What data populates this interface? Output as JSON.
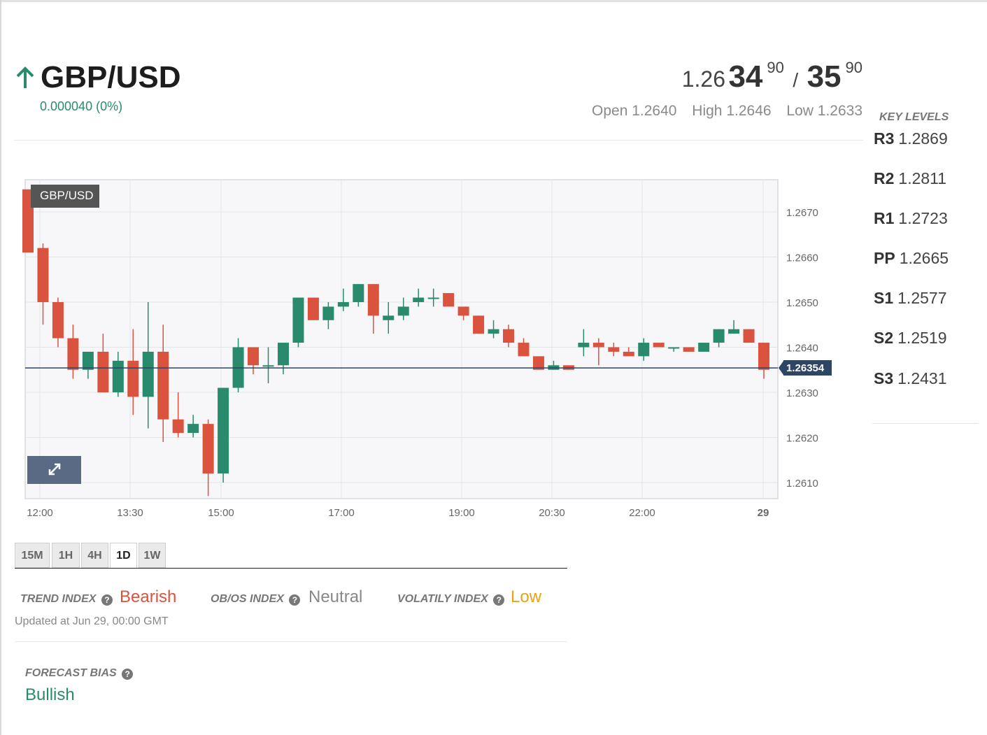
{
  "header": {
    "pair": "GBP/USD",
    "change": "0.000040 (0%)",
    "direction_icon": "arrow-up-icon",
    "up_color": "#2a8a6e"
  },
  "quote": {
    "bid_base": "1.26",
    "bid_big": "34",
    "bid_small": "90",
    "slash": "/",
    "ask_big": "35",
    "ask_small": "90",
    "open": "Open 1.2640",
    "high": "High 1.2646",
    "low": "Low 1.2633"
  },
  "key_levels": {
    "title": "KEY LEVELS",
    "rows": [
      {
        "name": "R3",
        "value": "1.2869"
      },
      {
        "name": "R2",
        "value": "1.2811"
      },
      {
        "name": "R1",
        "value": "1.2723"
      },
      {
        "name": "PP",
        "value": "1.2665"
      },
      {
        "name": "S1",
        "value": "1.2577"
      },
      {
        "name": "S2",
        "value": "1.2519"
      },
      {
        "name": "S3",
        "value": "1.2431"
      }
    ]
  },
  "chart": {
    "tag": "GBP/USD",
    "last_price": "1.26354",
    "expand_icon": "expand-icon"
  },
  "chart_data": {
    "type": "candlestick",
    "y_ticks": [
      "1.2670",
      "1.2660",
      "1.2650",
      "1.2640",
      "1.2630",
      "1.2620",
      "1.2610"
    ],
    "x_ticks": [
      "12:00",
      "13:30",
      "15:00",
      "17:00",
      "19:00",
      "20:30",
      "22:00",
      "29"
    ],
    "ylim": [
      1.2605,
      1.2677
    ],
    "last_price": 1.26354,
    "bull_color": "#2a8a6e",
    "bear_color": "#d9533f",
    "grid": true,
    "candles": [
      [
        1.2675,
        1.2675,
        1.2661,
        1.2661
      ],
      [
        1.2662,
        1.2663,
        1.2645,
        1.265
      ],
      [
        1.265,
        1.2651,
        1.264,
        1.2642
      ],
      [
        1.2642,
        1.2645,
        1.2633,
        1.2635
      ],
      [
        1.2635,
        1.2639,
        1.2633,
        1.2639
      ],
      [
        1.2639,
        1.2643,
        1.263,
        1.263
      ],
      [
        1.263,
        1.2639,
        1.2629,
        1.2637
      ],
      [
        1.2637,
        1.2644,
        1.2625,
        1.2629
      ],
      [
        1.2629,
        1.265,
        1.2622,
        1.2639
      ],
      [
        1.2639,
        1.2645,
        1.2619,
        1.2624
      ],
      [
        1.2624,
        1.263,
        1.262,
        1.2621
      ],
      [
        1.2621,
        1.2625,
        1.262,
        1.2623
      ],
      [
        1.2623,
        1.2624,
        1.2607,
        1.2612
      ],
      [
        1.2612,
        1.2631,
        1.261,
        1.2631
      ],
      [
        1.2631,
        1.2642,
        1.263,
        1.264
      ],
      [
        1.264,
        1.264,
        1.2634,
        1.2636
      ],
      [
        1.2636,
        1.264,
        1.2632,
        1.2636
      ],
      [
        1.2636,
        1.2641,
        1.2634,
        1.2641
      ],
      [
        1.2641,
        1.2651,
        1.264,
        1.2651
      ],
      [
        1.2651,
        1.2651,
        1.2646,
        1.2646
      ],
      [
        1.2646,
        1.265,
        1.2644,
        1.2649
      ],
      [
        1.2649,
        1.2653,
        1.2648,
        1.265
      ],
      [
        1.265,
        1.2654,
        1.2649,
        1.2654
      ],
      [
        1.2654,
        1.2654,
        1.2643,
        1.2647
      ],
      [
        1.2646,
        1.265,
        1.2643,
        1.2647
      ],
      [
        1.2647,
        1.2651,
        1.2646,
        1.2649
      ],
      [
        1.265,
        1.2653,
        1.2649,
        1.2651
      ],
      [
        1.2651,
        1.2653,
        1.2649,
        1.2651
      ],
      [
        1.2652,
        1.2652,
        1.2649,
        1.2649
      ],
      [
        1.2649,
        1.2649,
        1.2646,
        1.2647
      ],
      [
        1.2647,
        1.2647,
        1.2643,
        1.2643
      ],
      [
        1.2643,
        1.2646,
        1.2642,
        1.2644
      ],
      [
        1.2644,
        1.2645,
        1.264,
        1.2641
      ],
      [
        1.2641,
        1.2642,
        1.2638,
        1.2638
      ],
      [
        1.2638,
        1.2638,
        1.2635,
        1.2635
      ],
      [
        1.2635,
        1.2637,
        1.2635,
        1.2636
      ],
      [
        1.2636,
        1.2636,
        1.2635,
        1.2635
      ],
      [
        1.264,
        1.2644,
        1.2638,
        1.2641
      ],
      [
        1.2641,
        1.2642,
        1.2636,
        1.264
      ],
      [
        1.264,
        1.2641,
        1.2638,
        1.2639
      ],
      [
        1.2639,
        1.264,
        1.2638,
        1.2638
      ],
      [
        1.2638,
        1.2642,
        1.2637,
        1.2641
      ],
      [
        1.2641,
        1.2641,
        1.264,
        1.264
      ],
      [
        1.264,
        1.264,
        1.2639,
        1.264
      ],
      [
        1.264,
        1.264,
        1.2639,
        1.2639
      ],
      [
        1.2639,
        1.2641,
        1.2639,
        1.2641
      ],
      [
        1.2641,
        1.2644,
        1.264,
        1.2644
      ],
      [
        1.2643,
        1.2646,
        1.2643,
        1.2644
      ],
      [
        1.2644,
        1.2644,
        1.2641,
        1.2641
      ],
      [
        1.2641,
        1.2641,
        1.2633,
        1.2635
      ]
    ]
  },
  "tabs": [
    "15M",
    "1H",
    "4H",
    "1D",
    "1W"
  ],
  "active_tab": "1D",
  "indices": {
    "trend": {
      "label": "TREND INDEX",
      "value": "Bearish",
      "color": "#d9533f"
    },
    "obos": {
      "label": "OB/OS INDEX",
      "value": "Neutral",
      "color": "#888888"
    },
    "volatility": {
      "label": "VOLATILY INDEX",
      "value": "Low",
      "color": "#e8a31a"
    },
    "help_icon": "question-icon",
    "updated": "Updated at Jun 29, 00:00 GMT"
  },
  "forecast": {
    "label": "FORECAST BIAS",
    "value": "Bullish"
  }
}
